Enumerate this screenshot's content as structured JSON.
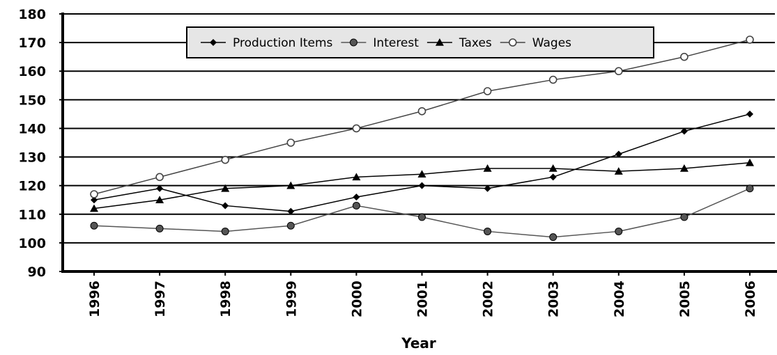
{
  "chart_data": {
    "type": "line",
    "title": "",
    "xlabel": "Year",
    "ylabel": "",
    "ylim": [
      90,
      180
    ],
    "y_ticks": [
      90,
      100,
      110,
      120,
      130,
      140,
      150,
      160,
      170,
      180
    ],
    "grid": "horizontal",
    "legend_position": "top-center",
    "categories": [
      "1996",
      "1997",
      "1998",
      "1999",
      "2000",
      "2001",
      "2002",
      "2003",
      "2004",
      "2005",
      "2006"
    ],
    "series": [
      {
        "name": "Production Items",
        "marker": "diamond",
        "color": "#000000",
        "values": [
          115,
          119,
          113,
          111,
          116,
          120,
          119,
          123,
          131,
          139,
          145
        ]
      },
      {
        "name": "Interest",
        "marker": "circle-filled",
        "color": "#555555",
        "values": [
          106,
          105,
          104,
          106,
          113,
          109,
          104,
          102,
          104,
          109,
          119
        ]
      },
      {
        "name": "Taxes",
        "marker": "triangle",
        "color": "#000000",
        "values": [
          112,
          115,
          119,
          120,
          123,
          124,
          126,
          126,
          125,
          126,
          128
        ]
      },
      {
        "name": "Wages",
        "marker": "circle-open",
        "color": "#444444",
        "values": [
          117,
          123,
          129,
          135,
          140,
          146,
          153,
          157,
          160,
          165,
          171
        ]
      }
    ]
  }
}
